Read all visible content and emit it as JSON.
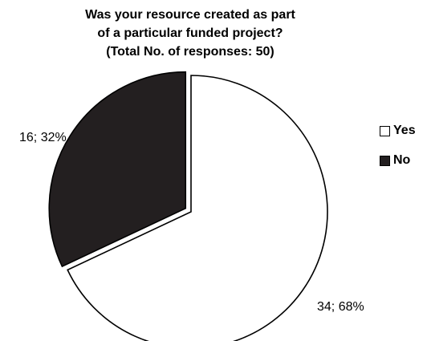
{
  "chart_data": {
    "type": "pie",
    "title_lines": [
      "Was your resource created as part",
      "of a particular funded project?",
      "(Total No. of responses: 50)"
    ],
    "slices": [
      {
        "name": "Yes",
        "value": 34,
        "percent": 68,
        "label": "34; 68%",
        "color": "#ffffff"
      },
      {
        "name": "No",
        "value": 16,
        "percent": 32,
        "label": "16; 32%",
        "color": "#231f20"
      }
    ],
    "legend": {
      "placement": "right",
      "items": [
        {
          "label": "Yes",
          "color": "#ffffff"
        },
        {
          "label": "No",
          "color": "#231f20"
        }
      ]
    },
    "stroke_color": "#000000"
  }
}
